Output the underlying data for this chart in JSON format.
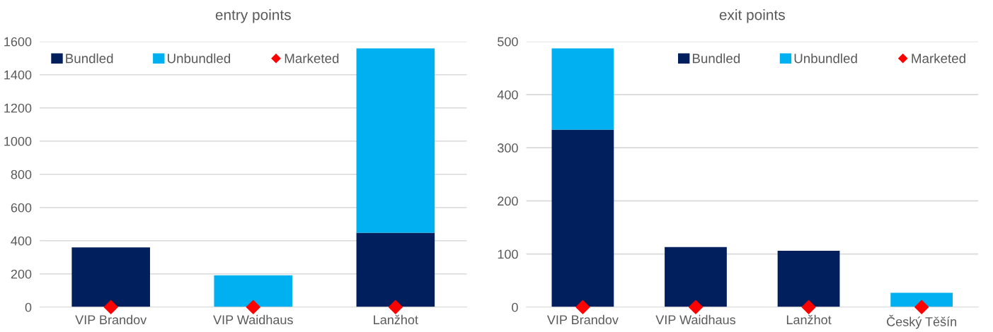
{
  "chart_data": [
    {
      "type": "bar",
      "title": "entry points",
      "stacked": true,
      "categories": [
        "VIP Brandov",
        "VIP Waidhaus",
        "Lanžhot"
      ],
      "series": [
        {
          "name": "Bundled",
          "color": "#001f5c",
          "values": [
            360,
            0,
            448
          ]
        },
        {
          "name": "Unbundled",
          "color": "#00b0f0",
          "values": [
            0,
            192,
            1110
          ]
        },
        {
          "name": "Marketed",
          "color": "#ff0000",
          "type": "scatter",
          "marker": "diamond",
          "x": [
            "VIP Brandov",
            "VIP Waidhaus",
            "Lanžhot"
          ],
          "values": [
            0,
            0,
            0
          ]
        }
      ],
      "ylim": [
        0,
        1600
      ],
      "yticks": [
        0,
        200,
        400,
        600,
        800,
        1000,
        1200,
        1400,
        1600
      ],
      "grid": "y",
      "legend": "top left"
    },
    {
      "type": "bar",
      "title": "exit points",
      "stacked": true,
      "categories": [
        "VIP Brandov",
        "VIP Waidhaus",
        "Lanžhot",
        "Český Těšín"
      ],
      "series": [
        {
          "name": "Bundled",
          "color": "#001f5c",
          "values": [
            334,
            113,
            106,
            0
          ]
        },
        {
          "name": "Unbundled",
          "color": "#00b0f0",
          "values": [
            153,
            0,
            0,
            27
          ]
        },
        {
          "name": "Marketed",
          "color": "#ff0000",
          "type": "scatter",
          "marker": "diamond",
          "x": [
            "VIP Brandov",
            "VIP Waidhaus",
            "Lanžhot",
            "Český Těšín"
          ],
          "values": [
            0,
            0,
            0,
            0
          ]
        }
      ],
      "ylim": [
        0,
        500
      ],
      "yticks": [
        0,
        100,
        200,
        300,
        400,
        500
      ],
      "grid": "y",
      "legend": "top right"
    }
  ]
}
